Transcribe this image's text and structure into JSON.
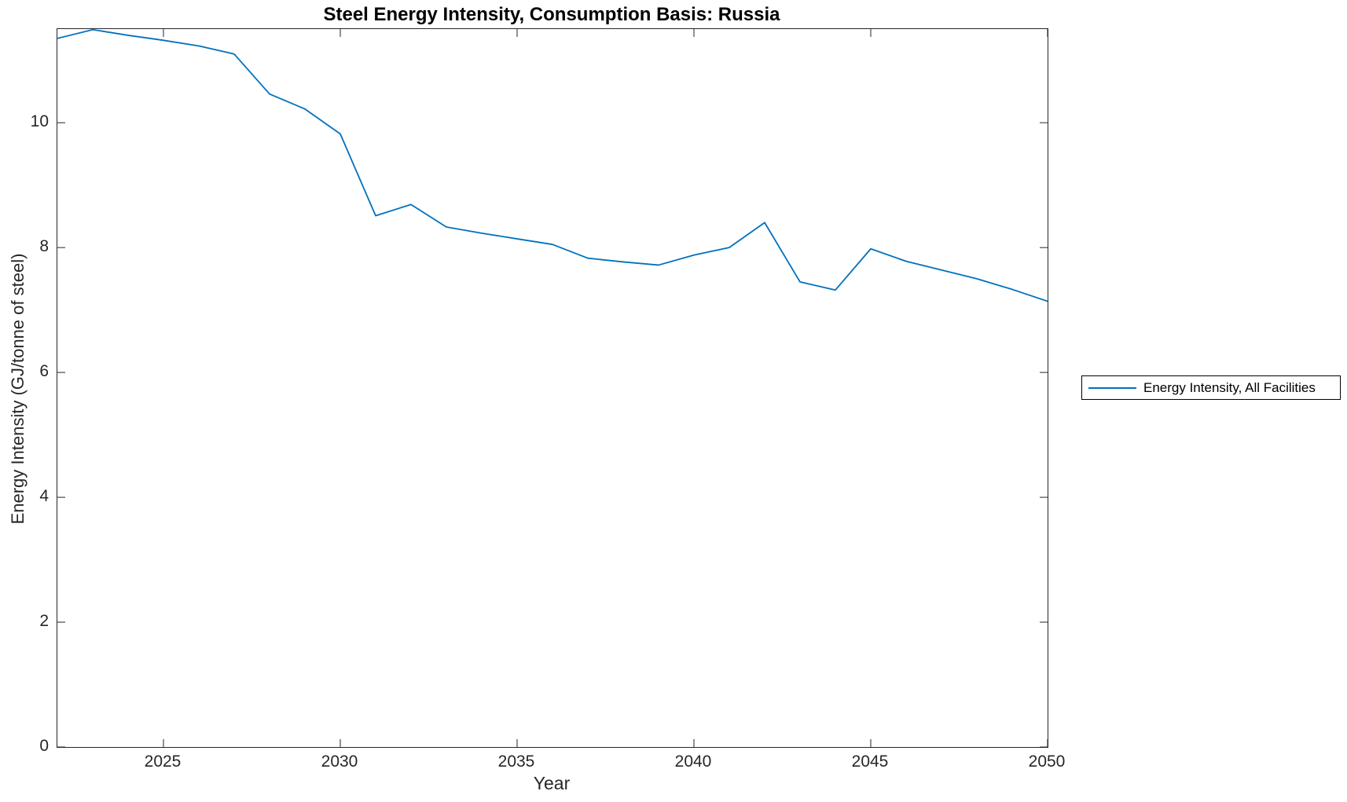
{
  "chart_data": {
    "type": "line",
    "title": "Steel Energy Intensity, Consumption Basis: Russia",
    "xlabel": "Year",
    "ylabel": "Energy Intensity (GJ/tonne of steel)",
    "xlim": [
      2022,
      2050
    ],
    "ylim": [
      0,
      11.5
    ],
    "x_ticks": [
      2025,
      2030,
      2035,
      2040,
      2045,
      2050
    ],
    "y_ticks": [
      0,
      2,
      4,
      6,
      8,
      10
    ],
    "grid": false,
    "box": true,
    "tick_direction": "in",
    "legend_position": "outside-right",
    "axis_color": "#262626",
    "background_color": "#ffffff",
    "series": [
      {
        "name": "Energy Intensity, All Facilities",
        "color": "#0072BD",
        "x": [
          2022,
          2023,
          2024,
          2025,
          2026,
          2027,
          2028,
          2029,
          2030,
          2031,
          2032,
          2033,
          2034,
          2035,
          2036,
          2037,
          2038,
          2039,
          2040,
          2041,
          2042,
          2043,
          2044,
          2045,
          2046,
          2047,
          2048,
          2049,
          2050
        ],
        "values": [
          11.35,
          11.49,
          11.4,
          11.32,
          11.23,
          11.1,
          10.46,
          10.22,
          9.82,
          8.51,
          8.69,
          8.33,
          8.23,
          8.14,
          8.05,
          7.83,
          7.77,
          7.72,
          7.88,
          8.0,
          8.4,
          7.45,
          7.32,
          7.98,
          7.78,
          7.64,
          7.5,
          7.33,
          7.14
        ]
      }
    ]
  }
}
